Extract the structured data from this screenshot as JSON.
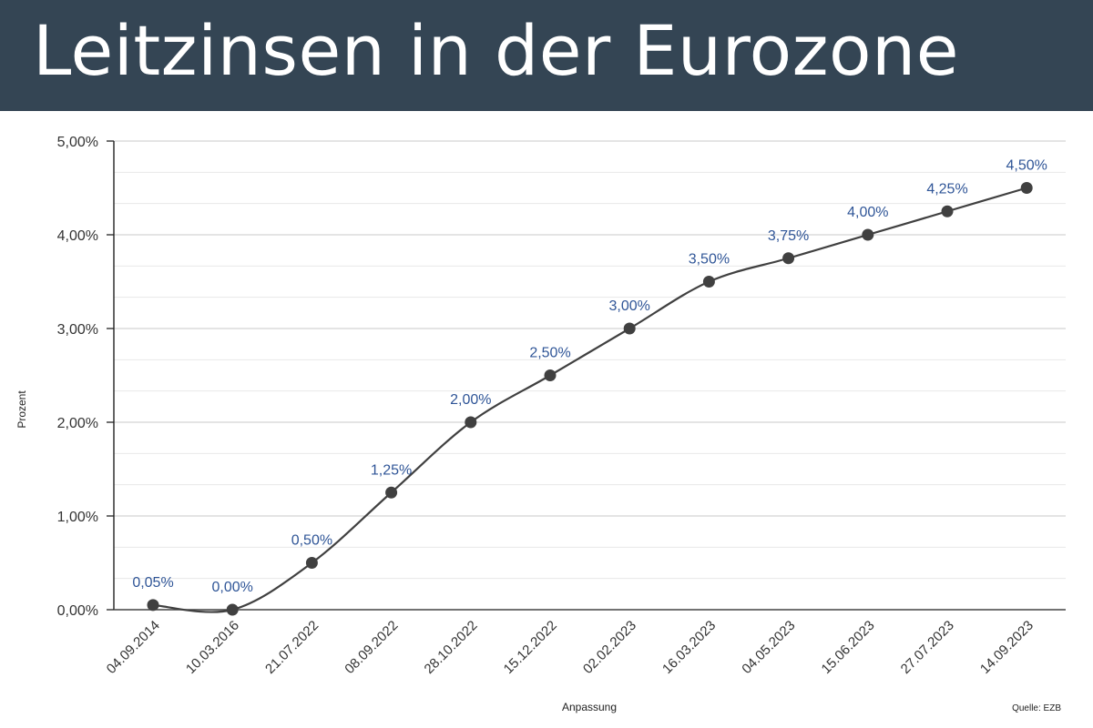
{
  "header": {
    "title": "Leitzinsen in der Eurozone"
  },
  "chart_data": {
    "type": "line",
    "smooth": true,
    "title": "Leitzinsen in der Eurozone",
    "xlabel": "Anpassung",
    "ylabel": "Prozent",
    "source": "Quelle: EZB",
    "categories": [
      "04.09.2014",
      "10.03.2016",
      "21.07.2022",
      "08.09.2022",
      "28.10.2022",
      "15.12.2022",
      "02.02.2023",
      "16.03.2023",
      "04.05.2023",
      "15.06.2023",
      "27.07.2023",
      "14.09.2023"
    ],
    "values": [
      0.05,
      0.0,
      0.5,
      1.25,
      2.0,
      2.5,
      3.0,
      3.5,
      3.75,
      4.0,
      4.25,
      4.5
    ],
    "data_labels": [
      "0,05%",
      "0,00%",
      "0,50%",
      "1,25%",
      "2,00%",
      "2,50%",
      "3,00%",
      "3,50%",
      "3,75%",
      "4,00%",
      "4,25%",
      "4,50%"
    ],
    "ylim": [
      0,
      5
    ],
    "yticks": [
      0,
      1,
      2,
      3,
      4,
      5
    ],
    "ytick_labels": [
      "0,00%",
      "1,00%",
      "2,00%",
      "3,00%",
      "4,00%",
      "5,00%"
    ],
    "grid": true,
    "minor_grid": true,
    "legend": "none",
    "colors": {
      "line": "#404040",
      "marker": "#404040",
      "data_label": "#2f5597",
      "header": "#344554"
    }
  }
}
